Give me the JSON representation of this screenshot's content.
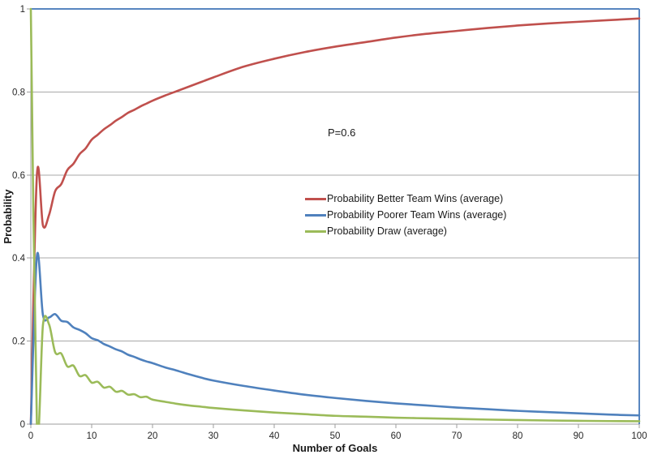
{
  "chart_data": {
    "type": "line",
    "title": "",
    "annotation": "P=0.6",
    "xlabel": "Number of Goals",
    "ylabel": "Probability",
    "xlim": [
      0,
      100
    ],
    "ylim": [
      0,
      1
    ],
    "x_ticks": [
      "0",
      "10",
      "20",
      "30",
      "40",
      "50",
      "60",
      "70",
      "80",
      "90",
      "100"
    ],
    "y_ticks": [
      [
        "0",
        0
      ],
      [
        "0.2",
        0.2
      ],
      [
        "0.4",
        0.4
      ],
      [
        "0.6",
        0.6
      ],
      [
        "0.8",
        0.8
      ],
      [
        "1",
        1
      ]
    ],
    "grid": "horizontal-only",
    "legend_position": "inside-middle",
    "colors": {
      "grid": "#A8A8A8",
      "axis": "#9C9C9C",
      "frame": "#5886C0",
      "tick_text": "#262626"
    },
    "series": [
      {
        "name": "Probability Better Team Wins (average)",
        "color": "#C0504D",
        "points": [
          [
            0,
            0
          ],
          [
            1,
            0.6
          ],
          [
            2,
            0.478
          ],
          [
            3,
            0.504
          ],
          [
            4,
            0.561
          ],
          [
            5,
            0.578
          ],
          [
            6,
            0.612
          ],
          [
            7,
            0.627
          ],
          [
            8,
            0.65
          ],
          [
            9,
            0.664
          ],
          [
            10,
            0.685
          ],
          [
            11,
            0.697
          ],
          [
            12,
            0.71
          ],
          [
            13,
            0.72
          ],
          [
            14,
            0.731
          ],
          [
            15,
            0.74
          ],
          [
            16,
            0.75
          ],
          [
            17,
            0.757
          ],
          [
            18,
            0.765
          ],
          [
            19,
            0.772
          ],
          [
            20,
            0.779
          ],
          [
            22,
            0.791
          ],
          [
            24,
            0.802
          ],
          [
            26,
            0.813
          ],
          [
            28,
            0.824
          ],
          [
            30,
            0.835
          ],
          [
            35,
            0.861
          ],
          [
            40,
            0.88
          ],
          [
            45,
            0.896
          ],
          [
            50,
            0.909
          ],
          [
            55,
            0.92
          ],
          [
            60,
            0.931
          ],
          [
            65,
            0.94
          ],
          [
            70,
            0.947
          ],
          [
            75,
            0.954
          ],
          [
            80,
            0.96
          ],
          [
            85,
            0.965
          ],
          [
            90,
            0.969
          ],
          [
            95,
            0.973
          ],
          [
            100,
            0.977
          ]
        ]
      },
      {
        "name": "Probability Poorer Team Wins (average)",
        "color": "#4F81BD",
        "points": [
          [
            0,
            0
          ],
          [
            1,
            0.405
          ],
          [
            2,
            0.262
          ],
          [
            3,
            0.257
          ],
          [
            4,
            0.265
          ],
          [
            5,
            0.249
          ],
          [
            6,
            0.246
          ],
          [
            7,
            0.233
          ],
          [
            8,
            0.227
          ],
          [
            9,
            0.219
          ],
          [
            10,
            0.207
          ],
          [
            11,
            0.202
          ],
          [
            12,
            0.193
          ],
          [
            13,
            0.187
          ],
          [
            14,
            0.18
          ],
          [
            15,
            0.175
          ],
          [
            16,
            0.167
          ],
          [
            17,
            0.162
          ],
          [
            18,
            0.156
          ],
          [
            19,
            0.151
          ],
          [
            20,
            0.147
          ],
          [
            22,
            0.137
          ],
          [
            24,
            0.129
          ],
          [
            26,
            0.12
          ],
          [
            28,
            0.112
          ],
          [
            30,
            0.105
          ],
          [
            35,
            0.092
          ],
          [
            40,
            0.081
          ],
          [
            45,
            0.071
          ],
          [
            50,
            0.063
          ],
          [
            55,
            0.056
          ],
          [
            60,
            0.05
          ],
          [
            65,
            0.045
          ],
          [
            70,
            0.04
          ],
          [
            75,
            0.036
          ],
          [
            80,
            0.032
          ],
          [
            85,
            0.029
          ],
          [
            90,
            0.026
          ],
          [
            95,
            0.023
          ],
          [
            100,
            0.021
          ]
        ]
      },
      {
        "name": "Probability Draw (average)",
        "color": "#9BBB59",
        "points": [
          [
            0,
            1
          ],
          [
            1,
            0
          ],
          [
            2,
            0.24
          ],
          [
            3,
            0.24
          ],
          [
            4,
            0.173
          ],
          [
            5,
            0.17
          ],
          [
            6,
            0.139
          ],
          [
            7,
            0.141
          ],
          [
            8,
            0.116
          ],
          [
            9,
            0.118
          ],
          [
            10,
            0.1
          ],
          [
            11,
            0.102
          ],
          [
            12,
            0.088
          ],
          [
            13,
            0.09
          ],
          [
            14,
            0.078
          ],
          [
            15,
            0.08
          ],
          [
            16,
            0.071
          ],
          [
            17,
            0.072
          ],
          [
            18,
            0.065
          ],
          [
            19,
            0.066
          ],
          [
            20,
            0.059
          ],
          [
            22,
            0.054
          ],
          [
            24,
            0.049
          ],
          [
            26,
            0.045
          ],
          [
            28,
            0.042
          ],
          [
            30,
            0.039
          ],
          [
            35,
            0.033
          ],
          [
            40,
            0.028
          ],
          [
            45,
            0.024
          ],
          [
            50,
            0.02
          ],
          [
            55,
            0.018
          ],
          [
            60,
            0.0155
          ],
          [
            65,
            0.014
          ],
          [
            70,
            0.0125
          ],
          [
            75,
            0.011
          ],
          [
            80,
            0.0098
          ],
          [
            85,
            0.0088
          ],
          [
            90,
            0.008
          ],
          [
            95,
            0.0073
          ],
          [
            100,
            0.007
          ]
        ]
      }
    ]
  }
}
